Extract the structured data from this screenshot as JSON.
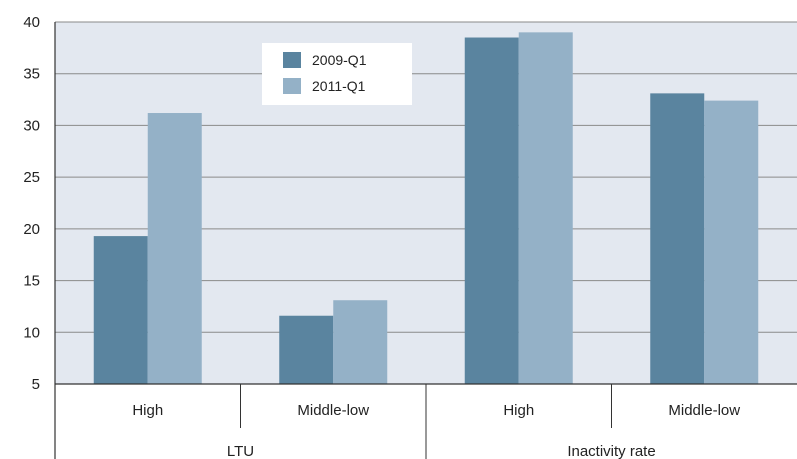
{
  "chart_data": {
    "type": "bar",
    "groups": [
      {
        "label": "LTU",
        "categories": [
          "High",
          "Middle-low"
        ]
      },
      {
        "label": "Inactivity rate",
        "categories": [
          "High",
          "Middle-low"
        ]
      }
    ],
    "categories": [
      "High",
      "Middle-low",
      "High",
      "Middle-low"
    ],
    "series": [
      {
        "name": "2009-Q1",
        "color": "#5a849f",
        "values": [
          19.3,
          11.6,
          38.5,
          33.1
        ]
      },
      {
        "name": "2011-Q1",
        "color": "#94b1c7",
        "values": [
          31.2,
          13.1,
          39.0,
          32.4
        ]
      }
    ],
    "ylim": [
      5,
      40
    ],
    "yticks": [
      "5",
      "10",
      "15",
      "20",
      "25",
      "30",
      "35",
      "40"
    ],
    "grid": true,
    "legend_position": "top-center",
    "plot_background": "#e3e8f0"
  }
}
